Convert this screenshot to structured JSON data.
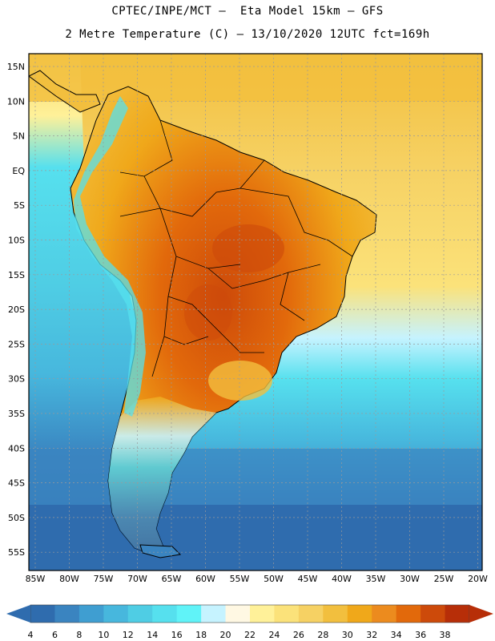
{
  "header": {
    "line1": "CPTEC/INPE/MCT –  Eta Model 15km – GFS",
    "line2": "2 Metre Temperature (C) – 13/10/2020 12UTC fct=169h"
  },
  "lat_labels": [
    "15N",
    "10N",
    "5N",
    "EQ",
    "5S",
    "10S",
    "15S",
    "20S",
    "25S",
    "30S",
    "35S",
    "40S",
    "45S",
    "50S",
    "55S"
  ],
  "lon_labels": [
    "85W",
    "80W",
    "75W",
    "70W",
    "65W",
    "60W",
    "55W",
    "50W",
    "45W",
    "40W",
    "35W",
    "30W",
    "25W",
    "20W"
  ],
  "colorbar": {
    "ticks": [
      "4",
      "6",
      "8",
      "10",
      "12",
      "14",
      "16",
      "18",
      "20",
      "22",
      "24",
      "26",
      "28",
      "30",
      "32",
      "34",
      "36",
      "38"
    ],
    "colors": [
      "#2f6cae",
      "#3a84c0",
      "#3f9ed1",
      "#47b7dd",
      "#4fcde4",
      "#56e0ee",
      "#60f3f8",
      "#c6f3ff",
      "#fff8e3",
      "#fff199",
      "#fbe27a",
      "#f6d163",
      "#f2bf3e",
      "#f0a81a",
      "#ec8b1e",
      "#e2690b",
      "#cd4a0a",
      "#b72e08"
    ],
    "low_arrow": "#2f6cae",
    "high_arrow": "#b72e08"
  },
  "map_colors": {
    "ocean_cold": "#2f6cae",
    "ocean_mid": "#4fcde4",
    "ocean_warm": "#f6d163",
    "land_hot": "#e2690b",
    "land_warm": "#f0a81a",
    "andes": "#c6f3ff"
  }
}
